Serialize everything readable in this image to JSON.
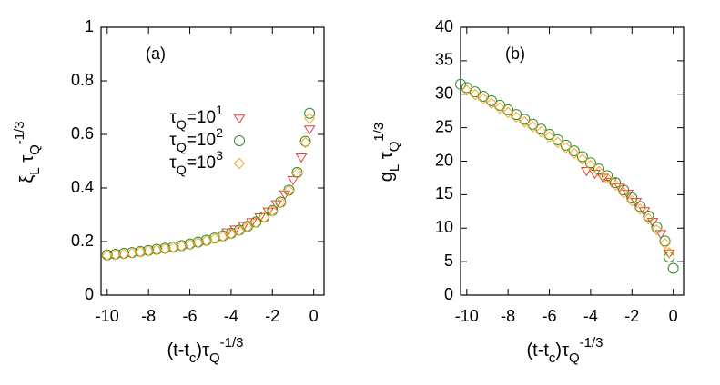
{
  "chart_data": [
    {
      "type": "scatter",
      "annotation": "(a)",
      "xlabel": [
        {
          "t": "(t-t"
        },
        {
          "sub": "c"
        },
        {
          "t": ")τ"
        },
        {
          "sub": "Q"
        },
        {
          "sup": "-1/3"
        }
      ],
      "ylabel": [
        {
          "t": "ξ"
        },
        {
          "sub": "L"
        },
        {
          "t": " τ"
        },
        {
          "sub": "Q"
        },
        {
          "sup": "-1/3"
        }
      ],
      "xlim": [
        -10.3,
        0.5
      ],
      "xticks": [
        -10,
        -8,
        -6,
        -4,
        -2,
        0
      ],
      "ylim": [
        0,
        1
      ],
      "yticks": [
        0,
        0.2,
        0.4,
        0.6,
        0.8,
        1
      ],
      "series": [
        {
          "name": [
            {
              "t": "τ"
            },
            {
              "sub": "Q"
            },
            {
              "t": "=10"
            },
            {
              "sup": "1"
            }
          ],
          "color": "#ee3a3a",
          "marker": "triangle",
          "x": [
            -4.2,
            -3.8,
            -3.4,
            -3.0,
            -2.6,
            -2.2,
            -1.8,
            -1.4,
            -1.0,
            -0.6,
            -0.2
          ],
          "values": [
            0.236,
            0.247,
            0.26,
            0.274,
            0.292,
            0.314,
            0.341,
            0.378,
            0.431,
            0.516,
            0.62
          ]
        },
        {
          "name": [
            {
              "t": "τ"
            },
            {
              "sub": "Q"
            },
            {
              "t": "=10"
            },
            {
              "sup": "2"
            }
          ],
          "color": "#2e8b2e",
          "marker": "circle",
          "x": [
            -10.0,
            -9.6,
            -9.2,
            -8.8,
            -8.4,
            -8.0,
            -7.6,
            -7.2,
            -6.8,
            -6.4,
            -6.0,
            -5.6,
            -5.2,
            -4.8,
            -4.4,
            -4.0,
            -3.6,
            -3.2,
            -2.8,
            -2.4,
            -2.0,
            -1.6,
            -1.2,
            -0.8,
            -0.4,
            -0.2
          ],
          "values": [
            0.15,
            0.153,
            0.156,
            0.159,
            0.163,
            0.167,
            0.171,
            0.175,
            0.18,
            0.185,
            0.191,
            0.198,
            0.205,
            0.213,
            0.221,
            0.231,
            0.243,
            0.257,
            0.273,
            0.292,
            0.316,
            0.348,
            0.392,
            0.458,
            0.574,
            0.679
          ]
        },
        {
          "name": [
            {
              "t": "τ"
            },
            {
              "sub": "Q"
            },
            {
              "t": "=10"
            },
            {
              "sup": "3"
            }
          ],
          "color": "#f5a623",
          "marker": "diamond",
          "x": [
            -10.0,
            -9.6,
            -9.2,
            -8.8,
            -8.4,
            -8.0,
            -7.6,
            -7.2,
            -6.8,
            -6.4,
            -6.0,
            -5.6,
            -5.2,
            -4.8,
            -4.4,
            -4.0,
            -3.6,
            -3.2,
            -2.8,
            -2.4,
            -2.0,
            -1.6,
            -1.2,
            -0.8,
            -0.4,
            -0.2
          ],
          "values": [
            0.148,
            0.151,
            0.154,
            0.157,
            0.161,
            0.165,
            0.169,
            0.173,
            0.178,
            0.183,
            0.189,
            0.196,
            0.203,
            0.211,
            0.219,
            0.229,
            0.241,
            0.255,
            0.271,
            0.29,
            0.314,
            0.346,
            0.39,
            0.455,
            0.57,
            0.66
          ]
        }
      ]
    },
    {
      "type": "scatter",
      "annotation": "(b)",
      "xlabel": [
        {
          "t": "(t-t"
        },
        {
          "sub": "c"
        },
        {
          "t": ")τ"
        },
        {
          "sub": "Q"
        },
        {
          "sup": "-1/3"
        }
      ],
      "ylabel": [
        {
          "t": "g"
        },
        {
          "sub": "L"
        },
        {
          "t": " τ"
        },
        {
          "sub": "Q"
        },
        {
          "sup": "1/3"
        }
      ],
      "xlim": [
        -10.3,
        0.5
      ],
      "xticks": [
        -10,
        -8,
        -6,
        -4,
        -2,
        0
      ],
      "ylim": [
        0,
        40
      ],
      "yticks": [
        0,
        5,
        10,
        15,
        20,
        25,
        30,
        35,
        40
      ],
      "series": [
        {
          "color": "#ee3a3a",
          "marker": "triangle",
          "x": [
            -4.2,
            -3.8,
            -3.4,
            -3.0,
            -2.6,
            -2.2,
            -1.8,
            -1.4,
            -1.0,
            -0.6,
            -0.2
          ],
          "values": [
            18.6,
            18.2,
            17.6,
            17.0,
            16.2,
            15.2,
            14.0,
            12.6,
            11.0,
            9.2,
            6.3
          ]
        },
        {
          "color": "#2e8b2e",
          "marker": "circle",
          "x": [
            -10.3,
            -10.0,
            -9.6,
            -9.2,
            -8.8,
            -8.4,
            -8.0,
            -7.6,
            -7.2,
            -6.8,
            -6.4,
            -6.0,
            -5.6,
            -5.2,
            -4.8,
            -4.4,
            -4.0,
            -3.6,
            -3.2,
            -2.8,
            -2.4,
            -2.0,
            -1.6,
            -1.2,
            -0.8,
            -0.4,
            -0.2,
            0.0
          ],
          "values": [
            31.5,
            30.98,
            30.35,
            29.7,
            29.04,
            28.36,
            27.67,
            26.97,
            26.26,
            25.53,
            24.78,
            24.0,
            23.21,
            22.39,
            21.55,
            20.68,
            19.77,
            18.83,
            17.84,
            16.8,
            15.69,
            14.51,
            13.22,
            11.79,
            10.14,
            8.09,
            5.7,
            4.0
          ]
        },
        {
          "color": "#f5a623",
          "marker": "diamond",
          "x": [
            -10.0,
            -9.6,
            -9.2,
            -8.8,
            -8.4,
            -8.0,
            -7.6,
            -7.2,
            -6.8,
            -6.4,
            -6.0,
            -5.6,
            -5.2,
            -4.8,
            -4.4,
            -4.0,
            -3.6,
            -3.2,
            -2.8,
            -2.4,
            -2.0,
            -1.6,
            -1.2,
            -0.8,
            -0.4,
            -0.2
          ],
          "values": [
            30.58,
            29.95,
            29.3,
            28.64,
            27.96,
            27.27,
            26.57,
            25.86,
            25.13,
            24.38,
            23.6,
            22.81,
            21.99,
            21.15,
            20.28,
            19.37,
            18.43,
            17.44,
            16.4,
            15.29,
            14.11,
            12.82,
            11.39,
            9.74,
            7.69,
            6.33
          ]
        }
      ]
    }
  ]
}
